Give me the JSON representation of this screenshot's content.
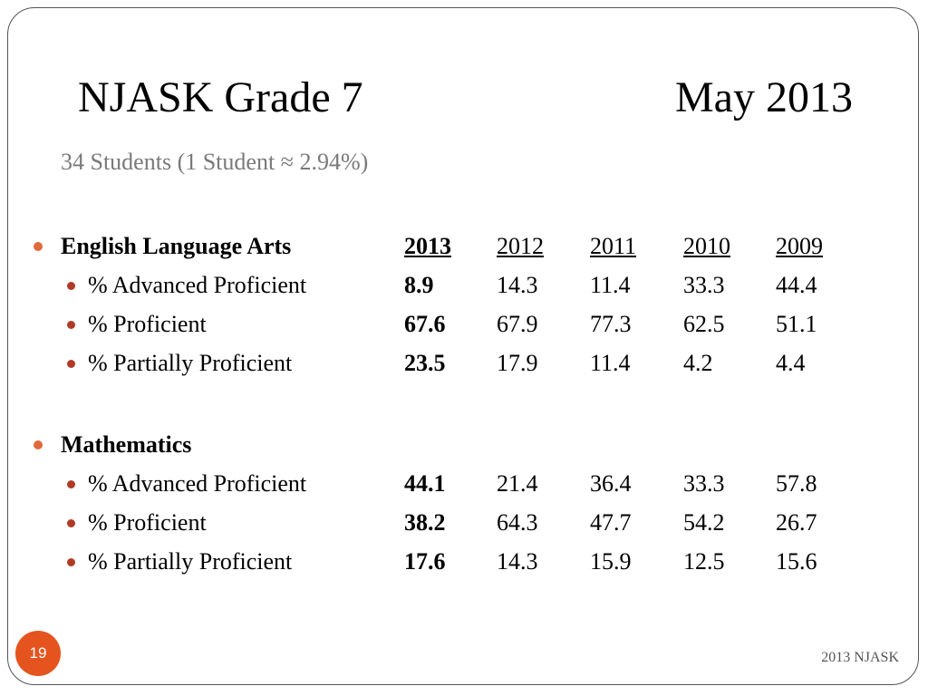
{
  "title": {
    "left": "NJASK Grade 7",
    "right": "May 2013"
  },
  "subtitle": "34 Students (1 Student ≈ 2.94%)",
  "sections": [
    {
      "label": "English Language Arts",
      "years": [
        "2013",
        "2012",
        "2011",
        "2010",
        "2009"
      ],
      "rows": [
        {
          "label": "% Advanced Proficient",
          "values": [
            "8.9",
            "14.3",
            "11.4",
            "33.3",
            "44.4"
          ]
        },
        {
          "label": "% Proficient",
          "values": [
            "67.6",
            "67.9",
            "77.3",
            "62.5",
            "51.1"
          ]
        },
        {
          "label": "% Partially Proficient",
          "values": [
            "23.5",
            "17.9",
            "11.4",
            "4.2",
            "4.4"
          ]
        }
      ]
    },
    {
      "label": "Mathematics",
      "rows": [
        {
          "label": "% Advanced Proficient",
          "values": [
            "44.1",
            "21.4",
            "36.4",
            "33.3",
            "57.8"
          ]
        },
        {
          "label": "% Proficient",
          "values": [
            "38.2",
            "64.3",
            "47.7",
            "54.2",
            "26.7"
          ]
        },
        {
          "label": "% Partially Proficient",
          "values": [
            "17.6",
            "14.3",
            "15.9",
            "12.5",
            "15.6"
          ]
        }
      ]
    }
  ],
  "page_number": "19",
  "footer": "2013 NJASK",
  "colors": {
    "bullet_main": "#e06a3b",
    "bullet_sub": "#b03a26",
    "page_badge": "#e5541f",
    "subtitle": "#7a7a7a"
  }
}
